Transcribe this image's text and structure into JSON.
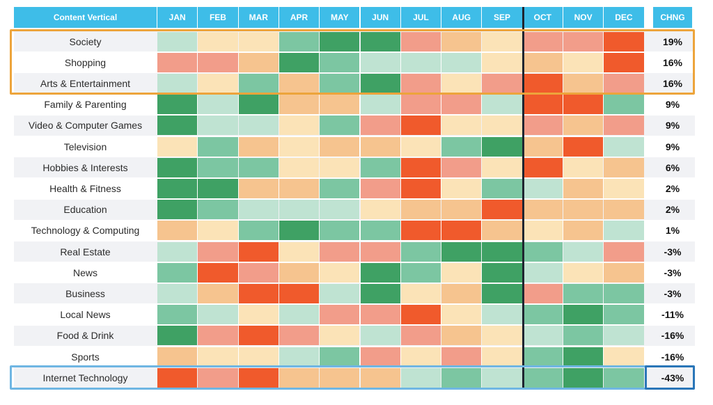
{
  "chart_data": {
    "type": "heatmap",
    "corner_label": "Content Vertical",
    "columns": [
      "JAN",
      "FEB",
      "MAR",
      "APR",
      "MAY",
      "JUN",
      "JUL",
      "AUG",
      "SEP",
      "OCT",
      "NOV",
      "DEC"
    ],
    "change_label": "CHNG",
    "rows": [
      {
        "label": "Society",
        "change": "19%",
        "values": [
          1,
          0,
          0,
          2,
          3,
          3,
          -2,
          -1,
          0,
          -2,
          -2,
          -3
        ]
      },
      {
        "label": "Shopping",
        "change": "16%",
        "values": [
          -2,
          -2,
          -1,
          3,
          2,
          1,
          1,
          1,
          0,
          -1,
          0,
          -3
        ]
      },
      {
        "label": "Arts & Entertainment",
        "change": "16%",
        "values": [
          1,
          0,
          2,
          -1,
          2,
          3,
          -2,
          0,
          -2,
          -3,
          -1,
          -2
        ]
      },
      {
        "label": "Family & Parenting",
        "change": "9%",
        "values": [
          3,
          1,
          3,
          -1,
          -1,
          1,
          -2,
          -2,
          1,
          -3,
          -3,
          2
        ]
      },
      {
        "label": "Video & Computer Games",
        "change": "9%",
        "values": [
          3,
          1,
          1,
          0,
          2,
          -2,
          -3,
          0,
          0,
          -2,
          -1,
          -2
        ]
      },
      {
        "label": "Television",
        "change": "9%",
        "values": [
          0,
          2,
          -1,
          0,
          -1,
          -1,
          0,
          2,
          3,
          -1,
          -3,
          1
        ]
      },
      {
        "label": "Hobbies & Interests",
        "change": "6%",
        "values": [
          3,
          2,
          2,
          0,
          0,
          2,
          -3,
          -2,
          0,
          -3,
          0,
          -1
        ]
      },
      {
        "label": "Health & Fitness",
        "change": "2%",
        "values": [
          3,
          3,
          -1,
          -1,
          2,
          -2,
          -3,
          0,
          2,
          1,
          -1,
          0
        ]
      },
      {
        "label": "Education",
        "change": "2%",
        "values": [
          3,
          2,
          1,
          1,
          1,
          0,
          -1,
          -1,
          -3,
          -1,
          -1,
          -1
        ]
      },
      {
        "label": "Technology & Computing",
        "change": "1%",
        "values": [
          -1,
          0,
          2,
          3,
          2,
          2,
          -3,
          -3,
          -1,
          0,
          -1,
          1
        ]
      },
      {
        "label": "Real Estate",
        "change": "-3%",
        "values": [
          1,
          -2,
          -3,
          0,
          -2,
          -2,
          2,
          3,
          3,
          2,
          1,
          -2
        ]
      },
      {
        "label": "News",
        "change": "-3%",
        "values": [
          2,
          -3,
          -2,
          -1,
          0,
          3,
          2,
          0,
          3,
          1,
          0,
          -1
        ]
      },
      {
        "label": "Business",
        "change": "-3%",
        "values": [
          1,
          -1,
          -3,
          -3,
          1,
          3,
          0,
          -1,
          3,
          -2,
          2,
          2
        ]
      },
      {
        "label": "Local News",
        "change": "-11%",
        "values": [
          2,
          1,
          0,
          1,
          -2,
          -2,
          -3,
          0,
          1,
          2,
          3,
          2
        ]
      },
      {
        "label": "Food & Drink",
        "change": "-16%",
        "values": [
          3,
          -2,
          -3,
          -2,
          0,
          1,
          -2,
          -1,
          0,
          1,
          2,
          1
        ]
      },
      {
        "label": "Sports",
        "change": "-16%",
        "values": [
          -1,
          0,
          0,
          1,
          2,
          -2,
          0,
          -2,
          0,
          2,
          3,
          0
        ]
      },
      {
        "label": "Internet Technology",
        "change": "-43%",
        "values": [
          -3,
          -2,
          -3,
          -1,
          -1,
          -1,
          1,
          2,
          1,
          2,
          3,
          2
        ]
      }
    ],
    "scale_colors": {
      "-3": "#f05a2c",
      "-2": "#f29d8a",
      "-1": "#f6c48f",
      "0": "#fbe3b7",
      "1": "#bfe3d2",
      "2": "#7cc6a2",
      "3": "#3fa164"
    },
    "header_color": "#3ebde8",
    "highlight_orange": "#eda43b",
    "highlight_blue": "#2a76b8"
  }
}
